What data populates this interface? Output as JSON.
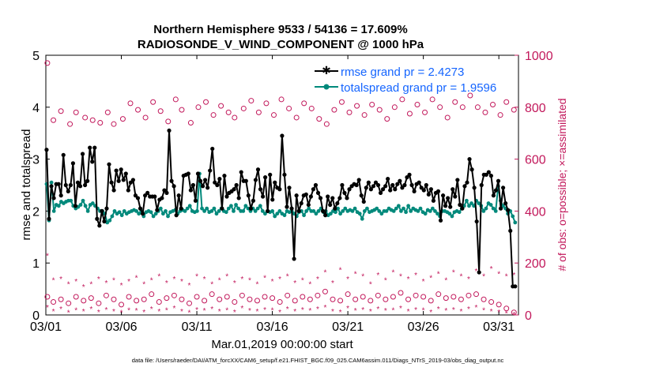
{
  "chart_data": {
    "type": "line",
    "title_line1": "Northern Hemisphere 9533 / 54136 = 17.609%",
    "title_line2": "RADIOSONDE_V_WIND_COMPONENT @ 1000 hPa",
    "xlabel": "Mar.01,2019 00:00:00 start",
    "ylabel": "rmse and totalspread",
    "ylabel_right": "# of obs: o=possible; ×=assimilated",
    "xlim": [
      0,
      31.3
    ],
    "ylim": [
      0,
      5
    ],
    "ylim_right": [
      0,
      1000
    ],
    "x_tick_values": [
      0,
      5,
      10,
      15,
      20,
      25,
      30
    ],
    "x_tick_labels": [
      "03/01",
      "03/06",
      "03/11",
      "03/16",
      "03/21",
      "03/26",
      "03/31"
    ],
    "y_tick_labels": [
      "0",
      "1",
      "2",
      "3",
      "4",
      "5"
    ],
    "y_right_tick_labels": [
      "0",
      "200",
      "400",
      "600",
      "800",
      "1000"
    ],
    "legend": [
      "rmse grand pr = 2.4273",
      "totalspread grand pr = 1.9596"
    ],
    "footer": "data file: /Users/raeder/DAI/ATM_forcXX/CAM6_setup/f.e21.FHIST_BGC.f09_025.CAM6assim.011/Diags_NTrS_2019-03/obs_diag_output.nc",
    "series": [
      {
        "name": "rmse",
        "color": "#000000",
        "values": [
          3.18,
          1.85,
          2.48,
          2.25,
          2.52,
          2.52,
          2.3,
          3.08,
          2.5,
          2.38,
          2.5,
          2.92,
          2.1,
          2.55,
          2.48,
          3.1,
          2.5,
          2.58,
          3.22,
          2.95,
          3.22,
          1.85,
          1.72,
          2.0,
          1.8,
          2.05,
          2.9,
          2.55,
          2.4,
          2.78,
          2.58,
          2.8,
          2.6,
          2.72,
          2.4,
          2.55,
          2.6,
          2.3,
          2.25,
          2.05,
          1.95,
          2.3,
          2.35,
          2.28,
          2.28,
          2.28,
          2.02,
          2.22,
          2.25,
          2.4,
          2.35,
          3.55,
          2.58,
          2.48,
          1.92,
          2.3,
          2.05,
          2.68,
          2.7,
          2.72,
          2.4,
          2.5,
          2.2,
          2.72,
          2.58,
          2.48,
          2.6,
          2.45,
          2.78,
          3.2,
          2.55,
          2.5,
          2.62,
          2.05,
          2.68,
          2.28,
          2.35,
          2.38,
          2.42,
          2.5,
          2.25,
          2.75,
          2.58,
          2.58,
          2.3,
          2.05,
          2.2,
          2.6,
          2.8,
          2.42,
          2.28,
          2.65,
          2.0,
          2.7,
          2.22,
          2.55,
          2.45,
          2.42,
          3.45,
          2.7,
          2.08,
          2.45,
          2.05,
          1.08,
          2.3,
          2.0,
          2.15,
          2.3,
          2.32,
          2.12,
          2.28,
          2.42,
          2.5,
          2.35,
          2.25,
          2.0,
          1.92,
          2.28,
          2.12,
          2.25,
          2.05,
          2.15,
          2.25,
          2.5,
          2.35,
          2.25,
          2.42,
          2.48,
          2.52,
          2.5,
          2.6,
          2.3,
          2.18,
          2.45,
          2.55,
          2.42,
          2.48,
          2.55,
          2.5,
          2.35,
          2.42,
          2.48,
          2.62,
          2.4,
          2.5,
          2.42,
          2.52,
          2.58,
          2.45,
          2.5,
          2.65,
          2.7,
          2.5,
          2.38,
          2.52,
          2.55,
          2.45,
          2.4,
          2.5,
          2.32,
          2.42,
          2.2,
          2.35,
          2.38,
          1.82,
          2.3,
          2.1,
          2.25,
          2.08,
          2.42,
          2.28,
          2.6,
          2.12,
          2.05,
          2.48,
          2.55,
          3.0,
          2.8,
          2.45,
          1.8,
          0.82,
          2.5,
          2.7,
          2.7,
          2.75,
          2.68,
          2.3,
          2.4,
          2.58,
          2.05,
          2.45,
          2.15,
          2.02,
          1.62,
          0.55,
          0.55
        ]
      },
      {
        "name": "totalspread",
        "color": "#00897b",
        "values": [
          2.52,
          1.82,
          2.55,
          2.0,
          2.12,
          2.1,
          2.18,
          2.15,
          2.18,
          2.2,
          2.2,
          2.1,
          2.05,
          2.08,
          2.12,
          2.2,
          2.1,
          2.0,
          2.12,
          2.15,
          2.1,
          2.05,
          2.0,
          2.0,
          1.95,
          1.78,
          1.82,
          1.9,
          2.0,
          1.95,
          1.98,
          1.92,
          2.0,
          1.95,
          1.98,
          2.0,
          2.02,
          2.0,
          1.95,
          2.0,
          1.9,
          1.98,
          2.0,
          1.98,
          1.9,
          1.95,
          2.0,
          2.05,
          1.95,
          2.0,
          1.9,
          1.98,
          2.0,
          2.02,
          1.95,
          2.0,
          2.02,
          2.0,
          2.05,
          2.1,
          2.0,
          1.98,
          2.0,
          2.72,
          2.05,
          2.0,
          2.05,
          1.98,
          2.0,
          2.05,
          1.95,
          2.0,
          2.05,
          2.0,
          1.98,
          2.05,
          2.1,
          2.0,
          2.12,
          2.05,
          2.0,
          2.0,
          2.1,
          2.05,
          2.0,
          2.05,
          2.0,
          2.05,
          2.1,
          2.0,
          1.95,
          2.0,
          1.98,
          2.0,
          1.9,
          1.95,
          2.0,
          1.95,
          1.92,
          2.0,
          1.98,
          2.0,
          1.95,
          1.9,
          1.98,
          2.0,
          1.92,
          2.0,
          2.05,
          2.0,
          2.0,
          1.95,
          2.0,
          2.05,
          1.98,
          2.0,
          1.92,
          1.95,
          2.0,
          1.98,
          2.05,
          1.95,
          2.0,
          2.05,
          2.0,
          2.02,
          2.0,
          2.05,
          1.98,
          1.95,
          1.85,
          2.0,
          2.05,
          1.98,
          2.0,
          2.02,
          2.05,
          2.0,
          1.95,
          2.0,
          2.0,
          2.05,
          2.02,
          2.0,
          2.05,
          2.1,
          2.0,
          2.05,
          1.98,
          2.1,
          2.0,
          2.05,
          2.02,
          2.0,
          2.05,
          1.98,
          1.95,
          2.02,
          2.0,
          2.05,
          2.0,
          1.95,
          1.9,
          2.0,
          2.0,
          1.98,
          1.95,
          1.9,
          1.98,
          2.0,
          1.98,
          2.05,
          2.1,
          2.2,
          2.1,
          2.15,
          2.1,
          2.2,
          2.15,
          2.1,
          2.0,
          2.05,
          2.15,
          2.12,
          2.05,
          2.0,
          2.48,
          2.2,
          2.1,
          2.05,
          1.95,
          2.0,
          1.9,
          1.78
        ]
      },
      {
        "name": "possible obs (upper)",
        "color": "#c2185b",
        "marker": "o",
        "x": [
          0.1,
          0.5,
          1.0,
          1.6,
          2.0,
          2.6,
          3.1,
          3.6,
          4.1,
          4.5,
          5.1,
          5.6,
          6.1,
          6.6,
          7.1,
          7.6,
          8.1,
          8.6,
          9.0,
          9.6,
          10.1,
          10.6,
          11.1,
          11.6,
          12.1,
          12.5,
          13.1,
          13.6,
          14.1,
          14.6,
          15.1,
          15.6,
          16.1,
          16.6,
          17.1,
          17.6,
          18.1,
          18.6,
          19.1,
          19.6,
          20.1,
          20.6,
          21.1,
          21.6,
          22.1,
          22.6,
          23.1,
          23.6,
          24.1,
          24.6,
          25.1,
          25.6,
          26.1,
          26.6,
          27.1,
          27.6,
          28.1,
          28.6,
          29.1,
          29.6,
          30.1,
          30.5,
          31.0
        ],
        "values": [
          970,
          750,
          785,
          735,
          780,
          760,
          750,
          740,
          780,
          735,
          755,
          815,
          790,
          760,
          820,
          785,
          745,
          830,
          790,
          740,
          800,
          820,
          770,
          805,
          780,
          760,
          795,
          825,
          780,
          815,
          770,
          830,
          795,
          760,
          815,
          795,
          755,
          735,
          790,
          820,
          780,
          805,
          770,
          810,
          790,
          755,
          800,
          830,
          775,
          810,
          780,
          830,
          800,
          760,
          820,
          800,
          845,
          800,
          780,
          810,
          770,
          820,
          790
        ]
      },
      {
        "name": "possible obs (lower)",
        "color": "#c2185b",
        "marker": "o",
        "x": [
          0.1,
          0.5,
          1.0,
          1.5,
          2.0,
          2.5,
          3.0,
          3.5,
          4.0,
          4.5,
          5.0,
          5.5,
          6.0,
          6.5,
          7.0,
          7.5,
          8.0,
          8.5,
          9.0,
          9.5,
          10.0,
          10.5,
          11.0,
          11.5,
          12.0,
          12.5,
          13.0,
          13.5,
          14.0,
          14.5,
          15.0,
          15.5,
          16.0,
          16.5,
          17.0,
          17.5,
          18.0,
          18.5,
          19.0,
          19.5,
          20.0,
          20.5,
          21.0,
          21.5,
          22.0,
          22.5,
          23.0,
          23.5,
          24.0,
          24.5,
          25.0,
          25.5,
          26.0,
          26.5,
          27.0,
          27.5,
          28.0,
          28.5,
          29.0,
          29.5,
          30.0,
          30.5,
          31.0
        ],
        "values": [
          70,
          50,
          60,
          45,
          70,
          55,
          65,
          45,
          75,
          60,
          40,
          70,
          55,
          60,
          80,
          50,
          65,
          75,
          60,
          45,
          70,
          55,
          80,
          60,
          70,
          50,
          75,
          60,
          55,
          70,
          65,
          50,
          75,
          55,
          70,
          60,
          75,
          90,
          60,
          55,
          80,
          60,
          70,
          55,
          75,
          60,
          70,
          85,
          60,
          75,
          70,
          55,
          80,
          65,
          70,
          60,
          75,
          80,
          60,
          50,
          40,
          25,
          10
        ]
      },
      {
        "name": "assimilated obs (upper)",
        "color": "#c2185b",
        "marker": "*",
        "x": [
          0.1,
          0.5,
          1.0,
          1.5,
          2.0,
          2.5,
          3.0,
          3.5,
          4.0,
          4.5,
          5.0,
          5.5,
          6.0,
          6.5,
          7.0,
          7.5,
          8.0,
          8.5,
          9.0,
          9.5,
          10.0,
          10.5,
          11.0,
          11.5,
          12.0,
          12.5,
          13.0,
          13.5,
          14.0,
          14.5,
          15.0,
          15.5,
          16.0,
          16.5,
          17.0,
          17.5,
          18.0,
          18.5,
          19.0,
          19.5,
          20.0,
          20.5,
          21.0,
          21.5,
          22.0,
          22.5,
          23.0,
          23.5,
          24.0,
          24.5,
          25.0,
          25.5,
          26.0,
          26.5,
          27.0,
          27.5,
          28.0,
          28.5,
          29.0,
          29.5,
          30.0,
          30.5,
          31.0
        ],
        "values": [
          230,
          135,
          140,
          120,
          130,
          110,
          120,
          140,
          125,
          135,
          115,
          130,
          145,
          120,
          135,
          150,
          125,
          140,
          130,
          115,
          150,
          140,
          120,
          135,
          150,
          125,
          140,
          135,
          120,
          145,
          130,
          140,
          150,
          125,
          135,
          120,
          140,
          165,
          125,
          175,
          140,
          160,
          150,
          120,
          155,
          135,
          165,
          150,
          140,
          155,
          130,
          145,
          160,
          135,
          165,
          150,
          140,
          170,
          150,
          180,
          160,
          150,
          155
        ]
      },
      {
        "name": "assimilated obs (lower)",
        "color": "#c2185b",
        "marker": "*",
        "x": [
          0.1,
          0.5,
          1.0,
          1.5,
          2.0,
          2.5,
          3.0,
          3.5,
          4.0,
          4.5,
          5.0,
          5.5,
          6.0,
          6.5,
          7.0,
          7.5,
          8.0,
          8.5,
          9.0,
          9.5,
          10.0,
          10.5,
          11.0,
          11.5,
          12.0,
          12.5,
          13.0,
          13.5,
          14.0,
          14.5,
          15.0,
          15.5,
          16.0,
          16.5,
          17.0,
          17.5,
          18.0,
          18.5,
          19.0,
          19.5,
          20.0,
          20.5,
          21.0,
          21.5,
          22.0,
          22.5,
          23.0,
          23.5,
          24.0,
          24.5,
          25.0,
          25.5,
          26.0,
          26.5,
          27.0,
          27.5,
          28.0,
          28.5,
          29.0,
          29.5,
          30.0,
          30.5,
          31.0
        ],
        "values": [
          30,
          15,
          25,
          10,
          20,
          15,
          25,
          12,
          22,
          15,
          10,
          20,
          18,
          12,
          25,
          15,
          20,
          28,
          15,
          10,
          22,
          18,
          25,
          15,
          20,
          12,
          28,
          18,
          15,
          22,
          20,
          12,
          25,
          15,
          22,
          18,
          25,
          30,
          15,
          12,
          28,
          18,
          22,
          15,
          25,
          18,
          20,
          28,
          15,
          22,
          20,
          12,
          25,
          18,
          22,
          15,
          25,
          30,
          20,
          15,
          12,
          8,
          3
        ]
      }
    ]
  }
}
